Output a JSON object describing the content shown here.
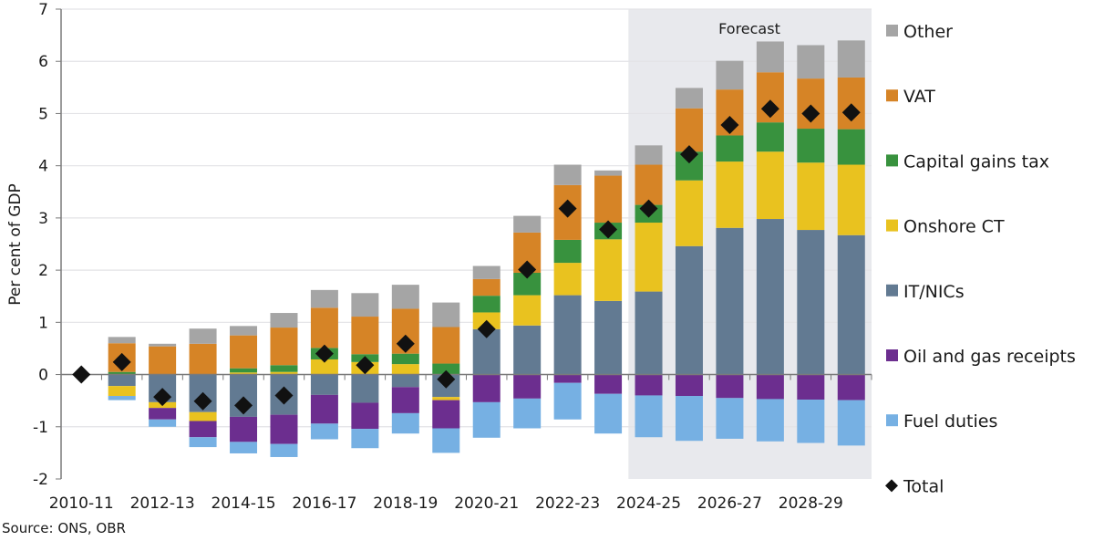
{
  "source_note": "Source: ONS, OBR",
  "chart_data": {
    "type": "bar",
    "stacked": true,
    "title": "",
    "xlabel": "",
    "ylabel": "Per cent of GDP",
    "ylim": [
      -2,
      7
    ],
    "yticks": [
      -2,
      -1,
      0,
      1,
      2,
      3,
      4,
      5,
      6,
      7
    ],
    "grid": true,
    "legend_position": "right",
    "categories": [
      "2010-11",
      "2011-12",
      "2012-13",
      "2013-14",
      "2014-15",
      "2015-16",
      "2016-17",
      "2017-18",
      "2018-19",
      "2019-20",
      "2020-21",
      "2021-22",
      "2022-23",
      "2023-24",
      "2024-25",
      "2025-26",
      "2026-27",
      "2027-28",
      "2028-29",
      "2029-30"
    ],
    "xtick_labels": [
      "2010-11",
      "2012-13",
      "2014-15",
      "2016-17",
      "2018-19",
      "2020-21",
      "2022-23",
      "2024-25",
      "2026-27",
      "2028-29"
    ],
    "shaded_region": {
      "label": "Forecast",
      "from_category": "2024-25",
      "to_category": "2029-30",
      "color": "#E8E9ED"
    },
    "series": [
      {
        "name": "IT/NICs",
        "color": "#627A92",
        "values": [
          0,
          -0.22,
          -0.53,
          -0.72,
          -0.81,
          -0.77,
          -0.39,
          -0.54,
          -0.24,
          -0.43,
          0.87,
          0.94,
          1.52,
          1.41,
          1.59,
          2.46,
          2.81,
          2.98,
          2.77,
          2.67
        ]
      },
      {
        "name": "Onshore CT",
        "color": "#E9C21F",
        "values": [
          0,
          -0.19,
          -0.11,
          -0.17,
          0.04,
          0.05,
          0.29,
          0.24,
          0.2,
          -0.06,
          0.32,
          0.58,
          0.62,
          1.18,
          1.32,
          1.26,
          1.27,
          1.29,
          1.29,
          1.35
        ]
      },
      {
        "name": "Capital gains tax",
        "color": "#38923E",
        "values": [
          0,
          0.05,
          0,
          0,
          0.08,
          0.13,
          0.22,
          0.15,
          0.2,
          0.21,
          0.32,
          0.43,
          0.44,
          0.32,
          0.34,
          0.55,
          0.5,
          0.56,
          0.65,
          0.68
        ]
      },
      {
        "name": "VAT",
        "color": "#D68426",
        "values": [
          0,
          0.55,
          0.54,
          0.59,
          0.63,
          0.72,
          0.77,
          0.72,
          0.86,
          0.7,
          0.32,
          0.77,
          1.05,
          0.9,
          0.77,
          0.83,
          0.88,
          0.96,
          0.96,
          0.99
        ]
      },
      {
        "name": "Other",
        "color": "#A5A5A5",
        "values": [
          0,
          0.12,
          0.05,
          0.29,
          0.18,
          0.28,
          0.34,
          0.45,
          0.46,
          0.47,
          0.25,
          0.32,
          0.39,
          0.1,
          0.37,
          0.39,
          0.55,
          0.59,
          0.64,
          0.71
        ]
      },
      {
        "name": "Oil and gas receipts",
        "color": "#6C2E8F",
        "values": [
          0,
          0,
          -0.22,
          -0.31,
          -0.48,
          -0.56,
          -0.55,
          -0.5,
          -0.5,
          -0.54,
          -0.53,
          -0.46,
          -0.16,
          -0.37,
          -0.4,
          -0.41,
          -0.45,
          -0.47,
          -0.48,
          -0.49
        ]
      },
      {
        "name": "Fuel duties",
        "color": "#76B0E3",
        "values": [
          0,
          -0.08,
          -0.14,
          -0.19,
          -0.22,
          -0.25,
          -0.3,
          -0.37,
          -0.39,
          -0.47,
          -0.68,
          -0.57,
          -0.7,
          -0.76,
          -0.8,
          -0.86,
          -0.78,
          -0.81,
          -0.83,
          -0.87
        ]
      }
    ],
    "total": {
      "name": "Total",
      "marker": "diamond",
      "color": "#111111",
      "values": [
        0,
        0.24,
        -0.43,
        -0.51,
        -0.59,
        -0.4,
        0.4,
        0.18,
        0.59,
        -0.09,
        0.87,
        2.01,
        3.18,
        2.78,
        3.18,
        4.22,
        4.78,
        5.09,
        5.0,
        5.02
      ]
    },
    "legend_order": [
      "Other",
      "VAT",
      "Capital gains tax",
      "Onshore CT",
      "IT/NICs",
      "Oil and gas receipts",
      "Fuel duties",
      "Total"
    ]
  }
}
